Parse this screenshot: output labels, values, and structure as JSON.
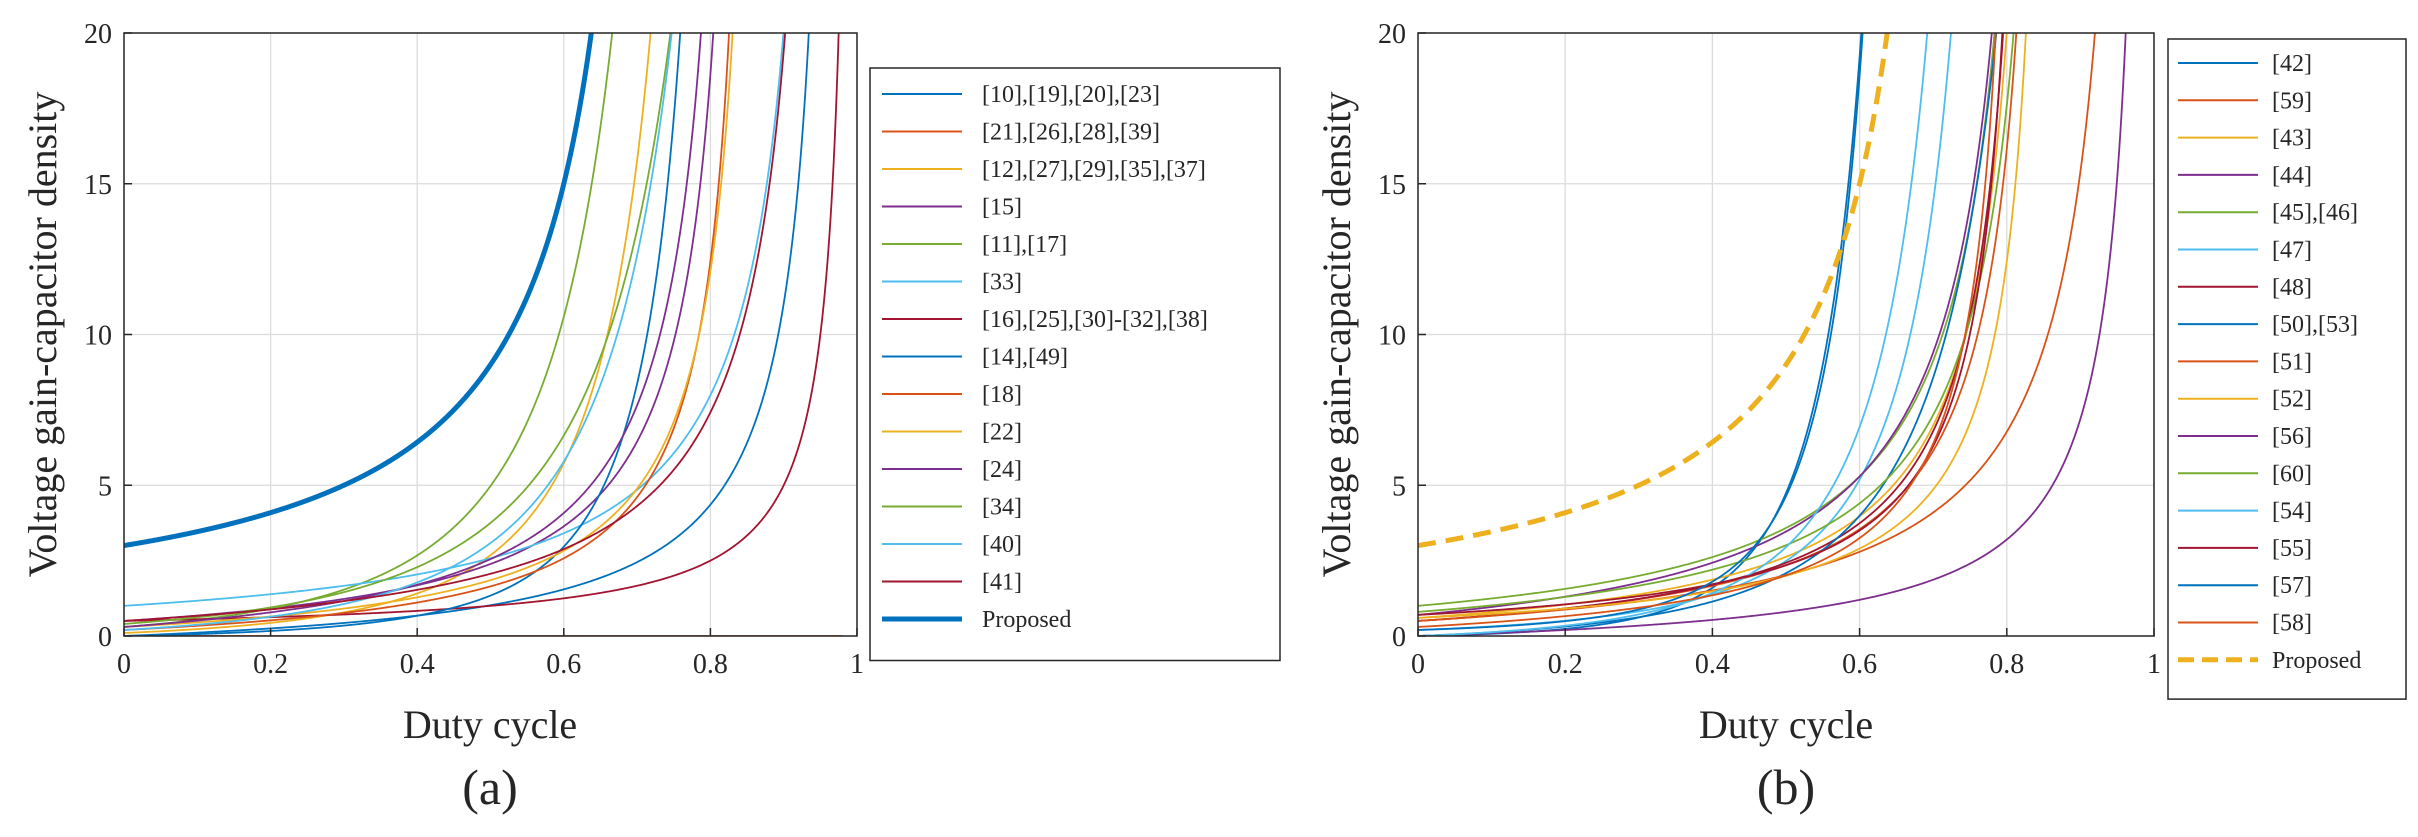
{
  "chart_data": [
    {
      "type": "line",
      "panel_label": "(a)",
      "xlabel": "Duty cycle",
      "ylabel": "Voltage gain-capacitor density",
      "xlim": [
        0,
        1
      ],
      "ylim": [
        0,
        20
      ],
      "xticks": [
        "0",
        "0.2",
        "0.4",
        "0.6",
        "0.8",
        "1"
      ],
      "yticks": [
        "0",
        "5",
        "10",
        "15",
        "20"
      ],
      "grid": true,
      "legend_position": "right",
      "series": [
        {
          "name": "[10],[19],[20],[23]",
          "color": "#0072BD",
          "a": 0,
          "b": 1,
          "n": 1,
          "m": 1,
          "c": 0.98
        },
        {
          "name": "[21],[26],[28],[39]",
          "color": "#D95319",
          "a": 0,
          "b": 0,
          "n": 2,
          "m": 2,
          "c": 0.98
        },
        {
          "name": "[12],[27],[29],[35],[37]",
          "color": "#EDB120",
          "a": 0.1,
          "b": 0.8,
          "n": 2,
          "m": 1,
          "c": 0.88
        },
        {
          "name": "[15]",
          "color": "#7E2F8E",
          "a": 0.5,
          "b": 1,
          "n": 1,
          "m": 1,
          "c": 0.86
        },
        {
          "name": "[11],[17]",
          "color": "#77AC30",
          "a": 0.3,
          "b": 1.2,
          "n": 2,
          "m": 1,
          "c": 0.87
        },
        {
          "name": "[33]",
          "color": "#4DBEEE",
          "a": 1.0,
          "b": 0.5,
          "n": 1,
          "m": 1,
          "c": 0.97
        },
        {
          "name": "[16],[25],[30]-[32],[38]",
          "color": "#A2142F",
          "a": 0.5,
          "b": 0,
          "n": 1,
          "m": 1,
          "c": 1.0
        },
        {
          "name": "[14],[49]",
          "color": "#0072BD",
          "a": 0,
          "b": 0.5,
          "n": 2,
          "m": 1,
          "c": 0.88
        },
        {
          "name": "[18]",
          "color": "#D95319",
          "a": 0.2,
          "b": 1,
          "n": 1,
          "m": 1,
          "c": 0.87
        },
        {
          "name": "[22]",
          "color": "#EDB120",
          "a": 0.3,
          "b": 1,
          "n": 1,
          "m": 1,
          "c": 0.88
        },
        {
          "name": "[24]",
          "color": "#7E2F8E",
          "a": 0.3,
          "b": 1.5,
          "n": 1,
          "m": 1,
          "c": 0.85
        },
        {
          "name": "[34]",
          "color": "#77AC30",
          "a": 0.4,
          "b": 1,
          "n": 2,
          "m": 1,
          "c": 0.98
        },
        {
          "name": "[40]",
          "color": "#4DBEEE",
          "a": 0.2,
          "b": 1,
          "n": 2,
          "m": 1,
          "c": 0.955
        },
        {
          "name": "[41]",
          "color": "#A2142F",
          "a": 0.5,
          "b": 1,
          "n": 1,
          "m": 1,
          "c": 0.97
        },
        {
          "name": "Proposed",
          "color": "#0072BD",
          "a": 3,
          "b": 0,
          "n": 1,
          "m": 1,
          "c": 0.75,
          "bold": true
        }
      ]
    },
    {
      "type": "line",
      "panel_label": "(b)",
      "xlabel": "Duty cycle",
      "ylabel": "Voltage gain-capacitor density",
      "xlim": [
        0,
        1
      ],
      "ylim": [
        0,
        20
      ],
      "xticks": [
        "0",
        "0.2",
        "0.4",
        "0.6",
        "0.8",
        "1"
      ],
      "yticks": [
        "0",
        "5",
        "10",
        "15",
        "20"
      ],
      "grid": true,
      "legend_position": "right",
      "series": [
        {
          "name": "[42]",
          "color": "#0072BD",
          "a": 0,
          "b": 0.5,
          "n": 3,
          "m": 1,
          "c": 0.8
        },
        {
          "name": "[59]",
          "color": "#D95319",
          "a": 0.5,
          "b": 1,
          "n": 1,
          "m": 1,
          "c": 0.87
        },
        {
          "name": "[43]",
          "color": "#EDB120",
          "a": 0.6,
          "b": 1,
          "n": 1,
          "m": 1,
          "c": 0.86
        },
        {
          "name": "[44]",
          "color": "#7E2F8E",
          "a": 0,
          "b": 0.8,
          "n": 1,
          "m": 1,
          "c": 1.0
        },
        {
          "name": "[45],[46]",
          "color": "#77AC30",
          "a": 1.0,
          "b": 1,
          "n": 1,
          "m": 1,
          "c": 0.86
        },
        {
          "name": "[47]",
          "color": "#4DBEEE",
          "a": 0.2,
          "b": 0.5,
          "n": 2,
          "m": 1,
          "c": 0.87
        },
        {
          "name": "[48]",
          "color": "#A2142F",
          "a": 0.5,
          "b": 1,
          "n": 1,
          "m": 1,
          "c": 0.85
        },
        {
          "name": "[50],[53]",
          "color": "#0072BD",
          "a": 0,
          "b": 1,
          "n": 2,
          "m": 1,
          "c": 0.98
        },
        {
          "name": "[51]",
          "color": "#D95319",
          "a": 0.5,
          "b": 1,
          "n": 1,
          "m": 1,
          "c": 0.99
        },
        {
          "name": "[52]",
          "color": "#EDB120",
          "a": 0.6,
          "b": 0.5,
          "n": 1,
          "m": 1,
          "c": 0.87
        },
        {
          "name": "[56]",
          "color": "#7E2F8E",
          "a": 0.7,
          "b": 1.5,
          "n": 1,
          "m": 1,
          "c": 0.86
        },
        {
          "name": "[60]",
          "color": "#77AC30",
          "a": 0.8,
          "b": 1,
          "n": 1,
          "m": 1,
          "c": 0.88
        },
        {
          "name": "[54]",
          "color": "#4DBEEE",
          "a": 0,
          "b": 1,
          "n": 2,
          "m": 1,
          "c": 0.85
        },
        {
          "name": "[55]",
          "color": "#A2142F",
          "a": 0.7,
          "b": 0.5,
          "n": 1,
          "m": 1,
          "c": 0.84
        },
        {
          "name": "[57]",
          "color": "#0072BD",
          "a": 0.2,
          "b": 0,
          "n": 3,
          "m": 1,
          "c": 0.77
        },
        {
          "name": "[58]",
          "color": "#D95319",
          "a": 0.3,
          "b": 1,
          "n": 1,
          "m": 1,
          "c": 0.83
        },
        {
          "name": "Proposed",
          "color": "#EDB120",
          "a": 3,
          "b": 0,
          "n": 1,
          "m": 1,
          "c": 0.75,
          "bold": true,
          "dashed": true
        }
      ]
    }
  ]
}
